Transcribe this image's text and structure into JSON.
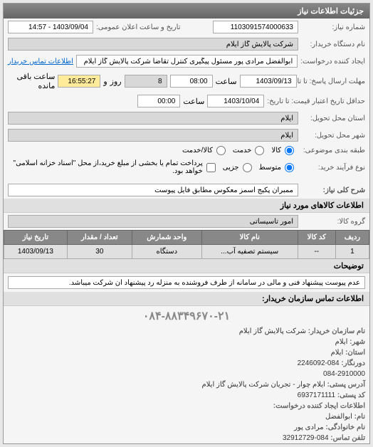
{
  "header": {
    "title": "جزئیات اطلاعات نیاز"
  },
  "labels": {
    "need_no": "شماره نیاز:",
    "announce_date": "تاریخ و ساعت اعلان عمومی:",
    "buyer_name": "نام دستگاه خریدار:",
    "creator": "ایجاد کننده درخواست:",
    "deadline": "مهلت ارسال پاسخ: تا تاریخ:",
    "validity": "حداقل تاریخ اعتبار قیمت: تا تاریخ:",
    "state": "استان محل تحویل:",
    "city": "شهر محل تحویل:",
    "group_type": "طبقه بندی موضوعی:",
    "process": "نوع فرآیند خرید:",
    "need_summary": "شرح کلی نیاز:",
    "goods_group": "گروه کالا:",
    "at_hour": "ساعت",
    "remain": "ساعت باقی مانده",
    "and": "و",
    "days": "روز",
    "contact_link": "اطلاعات تماس خریدار",
    "goods_section": "اطلاعات کالاهای مورد نیاز",
    "desc_section": "توضیحات",
    "contact_section": "اطلاعات تماس سازمان خریدار:",
    "org_name": "نام سازمان خریدار:",
    "city2": "شهر:",
    "state2": "استان:",
    "fax": "دورنگار:",
    "address": "آدرس پستی:",
    "postcode": "کد پستی:",
    "req_creator": "اطلاعات ایجاد کننده درخواست:",
    "name": "نام:",
    "family": "نام خانوادگی:",
    "phone": "تلفن تماس:"
  },
  "need_no": "1103091574000633",
  "announce_date": "1403/09/04 - 14:57",
  "buyer_name": "شرکت پالایش گاز ایلام",
  "creator": "ابوالفضل مرادی پور مسئول پیگیری کنترل تقاضا شرکت پالایش گاز ایلام",
  "deadline_date": "1403/09/13",
  "deadline_time": "08:00",
  "remain_days": "8",
  "remain_time": "16:55:27",
  "validity_date": "1403/10/04",
  "validity_time": "00:00",
  "state": "ایلام",
  "city": "ایلام",
  "groups": {
    "kala": "کالا",
    "service": "خدمت",
    "kala_service": "کالا/خدمت"
  },
  "process_opts": {
    "mid": "متوسط",
    "minor": "جزیی"
  },
  "process_note": "پرداخت تمام یا بخشی از مبلغ خرید،از محل \"اسناد خزانه اسلامی\" خواهد بود.",
  "need_summary": "ممبران پکیج اسمز معکوس مطابق فایل پیوست",
  "goods_group": "امور تاسیساتی",
  "table": {
    "headers": [
      "ردیف",
      "کد کالا",
      "نام کالا",
      "واحد شمارش",
      "تعداد / مقدار",
      "تاریخ نیاز"
    ],
    "rows": [
      [
        "1",
        "--",
        "سیستم تصفیه آب...",
        "دستگاه",
        "30",
        "1403/09/13"
      ]
    ]
  },
  "desc": "عدم پیوست پیشنهاد فنی و مالی در سامانه از طرف فروشنده به منزله رد پیشنهاد آن شرکت میباشد.",
  "phone_big": "۰۸۴-۸۸۳۴۹۶۷۰-۲۱",
  "contact": {
    "org": "شرکت پالایش گاز ایلام",
    "city": "ایلام",
    "state": "ایلام",
    "fax": "084-2246092",
    "address": "ایلام چوار - تجریان شرکت پالایش گاز ایلام",
    "postcode": "084-2910000",
    "bcode": "6937171111",
    "name": "ابوالفضل",
    "family": "مرادی پور",
    "phone": "084-32912729"
  }
}
